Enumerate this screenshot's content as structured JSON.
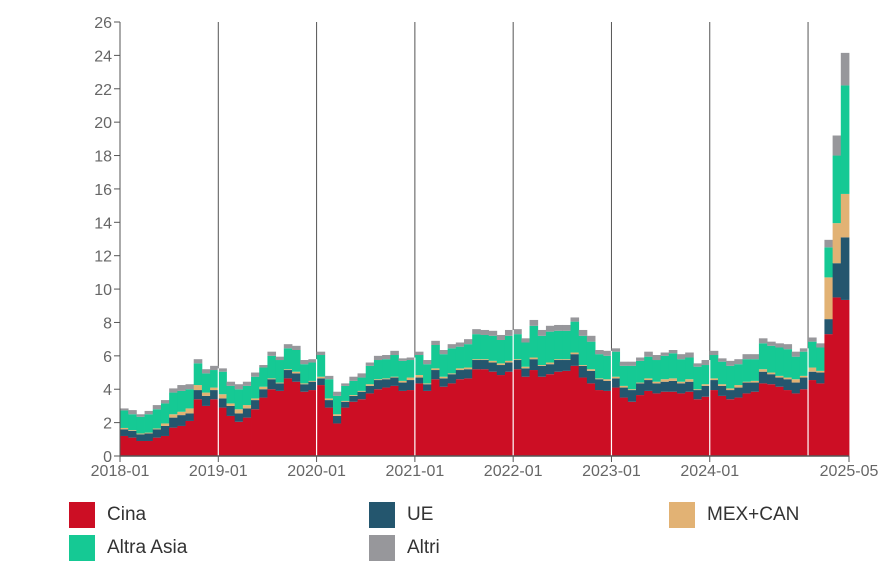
{
  "chart_data": {
    "type": "bar",
    "subtype": "stacked-step-area",
    "title": "",
    "xlabel": "",
    "ylabel": "",
    "ylim": [
      0,
      26
    ],
    "yticks": [
      0,
      2,
      4,
      6,
      8,
      10,
      12,
      14,
      16,
      18,
      20,
      22,
      24,
      26
    ],
    "xtick_labels": [
      "2018-01",
      "2019-01",
      "2020-01",
      "2021-01",
      "2022-01",
      "2023-01",
      "2024-01",
      "2025-05"
    ],
    "start_month": "2018-01",
    "end_month": "2025-05",
    "grid": "vertical lines at year starts",
    "legend_position": "bottom",
    "series": [
      {
        "name": "Cina",
        "color": "#cc0e24",
        "values": [
          1.2,
          1.1,
          0.9,
          0.9,
          1.1,
          1.2,
          1.7,
          1.8,
          2.1,
          3.4,
          3.0,
          3.4,
          2.9,
          2.4,
          2.05,
          2.3,
          2.8,
          3.5,
          4.0,
          3.9,
          4.65,
          4.45,
          3.85,
          3.95,
          4.25,
          2.9,
          1.95,
          2.9,
          3.25,
          3.4,
          3.75,
          4.0,
          4.1,
          4.2,
          3.9,
          3.95,
          4.35,
          3.9,
          4.6,
          4.15,
          4.35,
          4.6,
          4.65,
          5.2,
          5.2,
          5.05,
          4.85,
          5.05,
          5.2,
          4.75,
          5.15,
          4.75,
          4.9,
          5.05,
          5.1,
          5.4,
          4.7,
          4.35,
          3.95,
          3.9,
          4.1,
          3.5,
          3.25,
          3.65,
          3.9,
          3.75,
          3.85,
          3.85,
          3.75,
          3.85,
          3.4,
          3.55,
          3.95,
          3.6,
          3.4,
          3.5,
          3.75,
          3.85,
          4.35,
          4.3,
          4.15,
          3.95,
          3.75,
          4.0,
          4.55,
          4.35,
          7.3,
          9.5,
          9.35
        ]
      },
      {
        "name": "UE",
        "color": "#24566e",
        "values": [
          0.4,
          0.4,
          0.4,
          0.45,
          0.5,
          0.6,
          0.6,
          0.65,
          0.45,
          0.55,
          0.6,
          0.55,
          0.55,
          0.6,
          0.5,
          0.55,
          0.55,
          0.5,
          0.6,
          0.45,
          0.5,
          0.5,
          0.45,
          0.5,
          0.4,
          0.45,
          0.45,
          0.35,
          0.35,
          0.45,
          0.45,
          0.55,
          0.5,
          0.5,
          0.5,
          0.6,
          0.35,
          0.4,
          0.55,
          0.5,
          0.55,
          0.55,
          0.55,
          0.55,
          0.55,
          0.55,
          0.6,
          0.55,
          0.55,
          0.5,
          0.65,
          0.65,
          0.6,
          0.7,
          0.65,
          0.7,
          0.7,
          0.75,
          0.65,
          0.6,
          0.55,
          0.6,
          0.7,
          0.7,
          0.65,
          0.6,
          0.6,
          0.65,
          0.6,
          0.6,
          0.55,
          0.65,
          0.6,
          0.6,
          0.55,
          0.6,
          0.65,
          0.55,
          0.7,
          0.6,
          0.55,
          0.65,
          0.65,
          0.7,
          0.5,
          0.65,
          0.9,
          2.05,
          3.75
        ]
      },
      {
        "name": "MEX+CAN",
        "color": "#e2b274",
        "values": [
          0.08,
          0.05,
          0.05,
          0.05,
          0.05,
          0.15,
          0.2,
          0.2,
          0.3,
          0.3,
          0.2,
          0.15,
          0.25,
          0.15,
          0.25,
          0.2,
          0.1,
          0.15,
          0.05,
          0.05,
          0.05,
          0.1,
          0.05,
          0.05,
          0.1,
          0.1,
          0.1,
          0.05,
          0.05,
          0.05,
          0.1,
          0.05,
          0.05,
          0.05,
          0.1,
          0.15,
          0.15,
          0.05,
          0.1,
          0.1,
          0.05,
          0.1,
          0.1,
          0.05,
          0.05,
          0.1,
          0.1,
          0.1,
          0.05,
          0.1,
          0.1,
          0.05,
          0.1,
          0.05,
          0.05,
          0.1,
          0.05,
          0.1,
          0.05,
          0.1,
          0.1,
          0.1,
          0.05,
          0.05,
          0.1,
          0.1,
          0.15,
          0.15,
          0.1,
          0.15,
          0.05,
          0.1,
          0.1,
          0.1,
          0.1,
          0.15,
          0.05,
          0.1,
          0.15,
          0.1,
          0.1,
          0.1,
          0.2,
          0.1,
          0.25,
          0.1,
          2.5,
          2.4,
          2.6
        ]
      },
      {
        "name": "Altra Asia",
        "color": "#15c994",
        "values": [
          1.05,
          0.95,
          1.0,
          1.1,
          1.15,
          1.2,
          1.3,
          1.25,
          1.15,
          1.3,
          1.15,
          1.05,
          1.35,
          1.05,
          1.2,
          1.15,
          1.3,
          1.15,
          1.35,
          1.35,
          1.25,
          1.3,
          1.15,
          1.1,
          1.3,
          1.15,
          1.1,
          0.9,
          0.85,
          0.8,
          1.1,
          1.15,
          1.15,
          1.3,
          1.2,
          1.05,
          1.2,
          1.15,
          1.4,
          1.35,
          1.5,
          1.3,
          1.4,
          1.5,
          1.45,
          1.5,
          1.4,
          1.5,
          1.5,
          1.45,
          1.9,
          1.75,
          1.85,
          1.7,
          1.7,
          1.85,
          1.75,
          1.65,
          1.45,
          1.4,
          1.5,
          1.2,
          1.4,
          1.3,
          1.3,
          1.3,
          1.4,
          1.5,
          1.35,
          1.3,
          1.35,
          1.15,
          1.4,
          1.35,
          1.35,
          1.25,
          1.35,
          1.3,
          1.55,
          1.6,
          1.7,
          1.7,
          1.35,
          1.45,
          1.55,
          1.4,
          1.8,
          4.05,
          6.5
        ]
      },
      {
        "name": "Altri",
        "color": "#97979b",
        "values": [
          0.12,
          0.25,
          0.15,
          0.2,
          0.25,
          0.2,
          0.25,
          0.35,
          0.3,
          0.25,
          0.25,
          0.25,
          0.2,
          0.25,
          0.3,
          0.25,
          0.25,
          0.15,
          0.25,
          0.2,
          0.25,
          0.25,
          0.25,
          0.2,
          0.2,
          0.2,
          0.25,
          0.15,
          0.25,
          0.25,
          0.2,
          0.25,
          0.25,
          0.25,
          0.15,
          0.15,
          0.2,
          0.25,
          0.25,
          0.25,
          0.25,
          0.25,
          0.3,
          0.3,
          0.3,
          0.3,
          0.3,
          0.35,
          0.3,
          0.25,
          0.35,
          0.35,
          0.35,
          0.35,
          0.35,
          0.25,
          0.35,
          0.35,
          0.25,
          0.3,
          0.2,
          0.25,
          0.25,
          0.2,
          0.3,
          0.3,
          0.2,
          0.2,
          0.3,
          0.3,
          0.2,
          0.3,
          0.25,
          0.2,
          0.3,
          0.3,
          0.3,
          0.3,
          0.3,
          0.25,
          0.25,
          0.3,
          0.3,
          0.2,
          0.25,
          0.25,
          0.45,
          1.2,
          1.95
        ]
      }
    ],
    "legend": [
      "Cina",
      "UE",
      "MEX+CAN",
      "Altra Asia",
      "Altri"
    ]
  }
}
